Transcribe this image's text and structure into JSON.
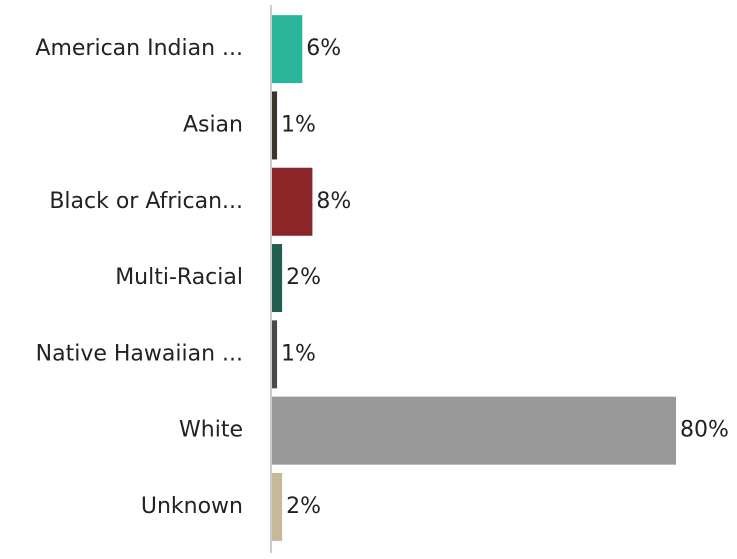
{
  "chart_data": {
    "type": "bar",
    "orientation": "horizontal",
    "categories": [
      "American Indian ...",
      "Asian",
      "Black or African...",
      "Multi-Racial",
      "Native Hawaiian ...",
      "White",
      "Unknown"
    ],
    "values": [
      6,
      1,
      8,
      2,
      1,
      80,
      2
    ],
    "value_labels": [
      "6%",
      "1%",
      "8%",
      "2%",
      "1%",
      "80%",
      "2%"
    ],
    "colors": [
      "#2bb59a",
      "#3d3328",
      "#8b2527",
      "#215e50",
      "#4a4a4a",
      "#999999",
      "#c8b89a"
    ]
  }
}
